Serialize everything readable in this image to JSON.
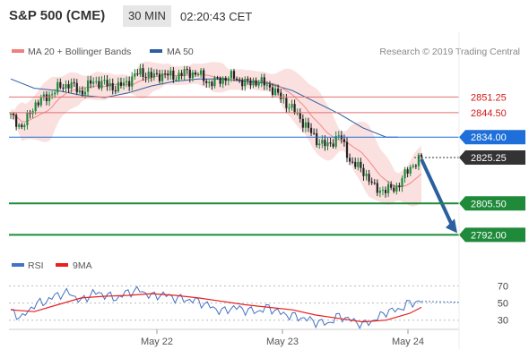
{
  "header": {
    "symbol": "S&P 500 (CME)",
    "timeframe": "30 MIN",
    "time": "02:20:43 CET"
  },
  "legend": {
    "items": [
      {
        "label": "MA 20 + Bollinger Bands",
        "color": "#f08080"
      },
      {
        "label": "MA 50",
        "color": "#2c5f9e"
      }
    ],
    "credit": "Research © 2019 Trading Central"
  },
  "colors": {
    "up": "#1e8a3a",
    "down": "#222222",
    "bands": "#fadada",
    "ma50": "#2c5f9e",
    "support": "#1e8a3a",
    "resistance": "#e07070",
    "current_level": "#1e6fd9",
    "last_price": "#333333",
    "arrow": "#2c5f9e",
    "rsi": "#4472c4",
    "rsi_ma": "#e82020"
  },
  "chart_data": [
    {
      "type": "candlestick",
      "title": "S&P 500 (CME)",
      "x_labels": [
        "May 22",
        "May 23",
        "May 24"
      ],
      "ylim": [
        2786,
        2866
      ],
      "levels": [
        {
          "value": 2851.25,
          "label": "2851.25",
          "kind": "resistance"
        },
        {
          "value": 2844.5,
          "label": "2844.50",
          "kind": "resistance"
        },
        {
          "value": 2834.0,
          "label": "2834.00",
          "kind": "current"
        },
        {
          "value": 2825.25,
          "label": "2825.25",
          "kind": "last"
        },
        {
          "value": 2805.5,
          "label": "2805.50",
          "kind": "support"
        },
        {
          "value": 2792.0,
          "label": "2792.00",
          "kind": "support"
        }
      ],
      "close_path": [
        [
          0,
          2843
        ],
        [
          10,
          2838
        ],
        [
          20,
          2848
        ],
        [
          30,
          2851
        ],
        [
          40,
          2855
        ],
        [
          50,
          2857
        ],
        [
          60,
          2853
        ],
        [
          70,
          2858
        ],
        [
          80,
          2857
        ],
        [
          90,
          2855
        ],
        [
          100,
          2858
        ],
        [
          110,
          2862
        ],
        [
          120,
          2860
        ],
        [
          130,
          2861
        ],
        [
          140,
          2860
        ],
        [
          150,
          2862
        ],
        [
          160,
          2861
        ],
        [
          170,
          2857
        ],
        [
          180,
          2859
        ],
        [
          190,
          2860
        ],
        [
          200,
          2857
        ],
        [
          210,
          2858
        ],
        [
          220,
          2856
        ],
        [
          230,
          2851
        ],
        [
          240,
          2846
        ],
        [
          250,
          2840
        ],
        [
          260,
          2833
        ],
        [
          270,
          2830
        ],
        [
          280,
          2835
        ],
        [
          290,
          2823
        ],
        [
          300,
          2820
        ],
        [
          310,
          2812
        ],
        [
          320,
          2811
        ],
        [
          330,
          2813
        ],
        [
          340,
          2821
        ],
        [
          350,
          2825
        ]
      ],
      "ma50_path": [
        [
          0,
          2859
        ],
        [
          20,
          2855
        ],
        [
          40,
          2854
        ],
        [
          60,
          2852
        ],
        [
          80,
          2851
        ],
        [
          100,
          2853
        ],
        [
          120,
          2856
        ],
        [
          140,
          2858
        ],
        [
          160,
          2859
        ],
        [
          180,
          2859
        ],
        [
          200,
          2858
        ],
        [
          220,
          2857
        ],
        [
          240,
          2854
        ],
        [
          260,
          2849
        ],
        [
          280,
          2844
        ],
        [
          300,
          2838
        ],
        [
          320,
          2834
        ],
        [
          330,
          2834
        ]
      ],
      "forecast_target": 2792.0
    },
    {
      "type": "line",
      "title": "RSI",
      "y_ticks": [
        70,
        50,
        30
      ],
      "ylim": [
        15,
        80
      ],
      "series": [
        {
          "name": "RSI",
          "points": [
            [
              0,
              40
            ],
            [
              10,
              33
            ],
            [
              20,
              48
            ],
            [
              30,
              52
            ],
            [
              40,
              60
            ],
            [
              50,
              62
            ],
            [
              60,
              52
            ],
            [
              70,
              62
            ],
            [
              80,
              60
            ],
            [
              90,
              55
            ],
            [
              100,
              63
            ],
            [
              110,
              65
            ],
            [
              120,
              58
            ],
            [
              130,
              60
            ],
            [
              140,
              56
            ],
            [
              150,
              54
            ],
            [
              160,
              52
            ],
            [
              170,
              46
            ],
            [
              180,
              40
            ],
            [
              190,
              45
            ],
            [
              200,
              42
            ],
            [
              210,
              40
            ],
            [
              220,
              45
            ],
            [
              230,
              38
            ],
            [
              240,
              35
            ],
            [
              250,
              32
            ],
            [
              260,
              28
            ],
            [
              270,
              26
            ],
            [
              280,
              35
            ],
            [
              290,
              30
            ],
            [
              300,
              25
            ],
            [
              310,
              30
            ],
            [
              320,
              40
            ],
            [
              330,
              42
            ],
            [
              340,
              50
            ],
            [
              350,
              52
            ]
          ]
        },
        {
          "name": "9MA",
          "points": [
            [
              0,
              42
            ],
            [
              20,
              40
            ],
            [
              40,
              48
            ],
            [
              60,
              56
            ],
            [
              80,
              58
            ],
            [
              100,
              59
            ],
            [
              120,
              61
            ],
            [
              140,
              59
            ],
            [
              160,
              56
            ],
            [
              180,
              52
            ],
            [
              200,
              48
            ],
            [
              220,
              45
            ],
            [
              240,
              42
            ],
            [
              260,
              36
            ],
            [
              280,
              32
            ],
            [
              300,
              28
            ],
            [
              320,
              30
            ],
            [
              340,
              38
            ],
            [
              350,
              45
            ]
          ]
        }
      ],
      "x_labels": [
        "May 22",
        "May 23",
        "May 24"
      ]
    }
  ]
}
